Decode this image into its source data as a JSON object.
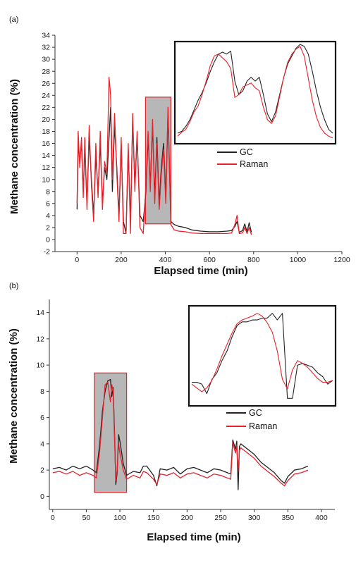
{
  "colors": {
    "gc": "#222222",
    "raman": "#e8212a",
    "highlight_fill": "#b7b7b7",
    "highlight_stroke": "#e8212a",
    "axis": "#333333"
  },
  "chart_data": [
    {
      "panel_label": "(a)",
      "type": "line",
      "xlabel": "Elapsed time (min)",
      "ylabel": "Methane concentration (%)",
      "xlim": [
        -100,
        1200
      ],
      "ylim": [
        -2,
        34
      ],
      "xticks": [
        0,
        200,
        400,
        600,
        800,
        1000,
        1200
      ],
      "yticks": [
        -2,
        0,
        2,
        4,
        6,
        8,
        10,
        12,
        14,
        16,
        18,
        20,
        22,
        24,
        26,
        28,
        30,
        32,
        34
      ],
      "grid": false,
      "legend_position": "right-middle",
      "highlight_region": {
        "x": [
          310,
          425
        ],
        "y": [
          2.6,
          23.7
        ]
      },
      "series": [
        {
          "name": "GC",
          "color": "#222222",
          "x": [
            0,
            5,
            12,
            20,
            28,
            35,
            45,
            55,
            65,
            75,
            85,
            95,
            105,
            115,
            125,
            135,
            145,
            152,
            160,
            170,
            180,
            190,
            200,
            210,
            222,
            232,
            242,
            252,
            262,
            272,
            285,
            300,
            312,
            322,
            332,
            342,
            352,
            362,
            372,
            382,
            392,
            402,
            412,
            425,
            440,
            460,
            490,
            520,
            560,
            600,
            640,
            680,
            700,
            715,
            725,
            735,
            750,
            760,
            770,
            780,
            790
          ],
          "values": [
            5,
            16,
            13,
            16,
            8,
            15,
            6,
            17,
            10,
            4,
            14,
            8,
            16,
            6,
            12,
            10,
            17,
            22,
            8,
            19,
            12,
            4,
            16,
            3,
            1,
            15,
            3,
            20,
            9,
            17,
            4,
            3,
            8,
            17,
            9,
            19,
            7,
            17,
            6,
            12,
            16,
            7,
            21,
            3,
            2.5,
            2.2,
            2,
            1.6,
            1.4,
            1.3,
            1.3,
            1.4,
            1.5,
            2.2,
            3,
            1.2,
            1.5,
            2.6,
            1.3,
            2.8,
            1.2
          ]
        },
        {
          "name": "Raman",
          "color": "#e8212a",
          "x": [
            0,
            5,
            12,
            20,
            28,
            35,
            45,
            55,
            65,
            75,
            85,
            95,
            105,
            115,
            125,
            135,
            145,
            152,
            160,
            170,
            180,
            190,
            200,
            210,
            222,
            232,
            242,
            252,
            262,
            272,
            285,
            300,
            312,
            322,
            332,
            342,
            352,
            362,
            372,
            382,
            392,
            402,
            412,
            425,
            440,
            460,
            490,
            520,
            560,
            600,
            640,
            680,
            700,
            715,
            725,
            735,
            750,
            760,
            770,
            780,
            790
          ],
          "values": [
            6,
            18,
            12,
            17,
            7,
            17,
            5,
            19,
            9,
            3,
            16,
            7,
            18,
            5,
            13,
            11,
            27,
            24,
            10,
            21,
            11,
            3,
            17,
            1,
            1,
            16,
            1,
            21,
            8,
            18,
            2,
            1,
            9,
            18,
            8,
            20,
            6,
            16,
            5,
            11,
            15,
            6,
            22,
            2.5,
            1.6,
            1.4,
            1.3,
            1.1,
            1,
            1,
            1,
            1,
            1.1,
            2.5,
            4,
            1,
            1.1,
            2,
            1,
            2,
            0.8
          ]
        }
      ],
      "inset": {
        "series": [
          {
            "name": "GC",
            "values": [
              0.08,
              0.1,
              0.15,
              0.22,
              0.32,
              0.42,
              0.5,
              0.6,
              0.72,
              0.82,
              0.9,
              0.92,
              0.9,
              0.93,
              0.62,
              0.48,
              0.52,
              0.62,
              0.66,
              0.62,
              0.66,
              0.48,
              0.28,
              0.2,
              0.3,
              0.48,
              0.66,
              0.8,
              0.88,
              0.96,
              1.0,
              0.98,
              0.9,
              0.72,
              0.52,
              0.35,
              0.22,
              0.12,
              0.08
            ]
          },
          {
            "name": "Raman",
            "values": [
              0.05,
              0.09,
              0.12,
              0.2,
              0.3,
              0.36,
              0.48,
              0.62,
              0.78,
              0.88,
              0.9,
              0.86,
              0.82,
              0.75,
              0.45,
              0.48,
              0.56,
              0.58,
              0.6,
              0.55,
              0.52,
              0.35,
              0.22,
              0.18,
              0.26,
              0.46,
              0.66,
              0.82,
              0.9,
              0.95,
              0.98,
              0.88,
              0.65,
              0.42,
              0.25,
              0.14,
              0.08,
              0.05,
              0.03
            ]
          }
        ]
      }
    },
    {
      "panel_label": "(b)",
      "type": "line",
      "xlabel": "Elapsed time (min)",
      "ylabel": "Methane concentration (%)",
      "xlim": [
        -5,
        420
      ],
      "ylim": [
        -1,
        15
      ],
      "xticks": [
        0,
        50,
        100,
        150,
        200,
        250,
        300,
        350,
        400
      ],
      "yticks": [
        0,
        2,
        4,
        6,
        8,
        10,
        12,
        14
      ],
      "grid": false,
      "legend_position": "right-middle",
      "highlight_region": {
        "x": [
          62,
          110
        ],
        "y": [
          0.3,
          9.4
        ]
      },
      "series": [
        {
          "name": "GC",
          "color": "#222222",
          "x": [
            0,
            10,
            20,
            30,
            40,
            50,
            60,
            65,
            70,
            74,
            78,
            82,
            86,
            88,
            90,
            92,
            94,
            96,
            98,
            100,
            105,
            110,
            120,
            130,
            135,
            140,
            150,
            155,
            160,
            170,
            180,
            190,
            200,
            210,
            220,
            230,
            240,
            250,
            260,
            265,
            268,
            272,
            274,
            276,
            278,
            280,
            290,
            300,
            310,
            320,
            330,
            340,
            345,
            350,
            360,
            370,
            380
          ],
          "values": [
            2.1,
            2.2,
            2.0,
            2.3,
            2.1,
            2.3,
            2.0,
            1.8,
            4.0,
            6.5,
            8.0,
            8.8,
            8.9,
            7.6,
            8.3,
            5.0,
            0.9,
            1.8,
            4.7,
            4.2,
            2.5,
            1.6,
            1.9,
            1.8,
            2.3,
            2.3,
            1.6,
            0.8,
            2.1,
            2.0,
            2.2,
            1.7,
            2.1,
            2.2,
            2.0,
            1.8,
            2.1,
            2.0,
            1.8,
            1.7,
            4.3,
            3.6,
            4.2,
            0.5,
            3.8,
            4.0,
            3.6,
            3.2,
            2.6,
            2.2,
            1.8,
            1.2,
            1.0,
            1.5,
            2.0,
            2.1,
            2.3
          ]
        },
        {
          "name": "Raman",
          "color": "#e8212a",
          "x": [
            0,
            10,
            20,
            30,
            40,
            50,
            60,
            65,
            70,
            74,
            78,
            82,
            86,
            88,
            90,
            92,
            94,
            96,
            98,
            100,
            105,
            110,
            120,
            130,
            135,
            140,
            150,
            155,
            160,
            170,
            180,
            190,
            200,
            210,
            220,
            230,
            240,
            250,
            260,
            265,
            268,
            272,
            274,
            276,
            278,
            280,
            290,
            300,
            310,
            320,
            330,
            340,
            345,
            350,
            360,
            370,
            380
          ],
          "values": [
            1.8,
            1.9,
            1.7,
            1.9,
            1.6,
            1.8,
            1.6,
            1.4,
            3.5,
            6.0,
            8.5,
            8.7,
            7.2,
            8.5,
            8.0,
            4.5,
            1.2,
            2.0,
            4.0,
            3.3,
            2.0,
            1.3,
            1.6,
            1.4,
            1.9,
            1.8,
            1.3,
            0.9,
            1.7,
            1.6,
            1.8,
            1.4,
            1.7,
            1.8,
            1.6,
            1.4,
            1.7,
            1.6,
            1.4,
            1.3,
            4.1,
            3.3,
            3.9,
            1.9,
            3.5,
            3.7,
            3.3,
            2.9,
            2.3,
            1.9,
            1.5,
            1.0,
            0.8,
            1.2,
            1.7,
            1.8,
            2.0
          ]
        }
      ],
      "inset": {
        "series": [
          {
            "name": "GC",
            "values": [
              0.22,
              0.22,
              0.2,
              0.1,
              0.25,
              0.32,
              0.45,
              0.55,
              0.7,
              0.82,
              0.86,
              0.86,
              0.88,
              0.88,
              0.9,
              0.9,
              0.95,
              0.88,
              0.95,
              0.05,
              0.05,
              0.4,
              0.42,
              0.4,
              0.38,
              0.32,
              0.28,
              0.2,
              0.24
            ]
          },
          {
            "name": "Raman",
            "values": [
              0.2,
              0.16,
              0.12,
              0.16,
              0.24,
              0.36,
              0.5,
              0.62,
              0.74,
              0.84,
              0.88,
              0.9,
              0.92,
              0.95,
              0.92,
              0.85,
              0.75,
              0.55,
              0.25,
              0.15,
              0.35,
              0.45,
              0.42,
              0.38,
              0.32,
              0.26,
              0.22,
              0.22,
              0.24
            ]
          }
        ]
      }
    }
  ]
}
